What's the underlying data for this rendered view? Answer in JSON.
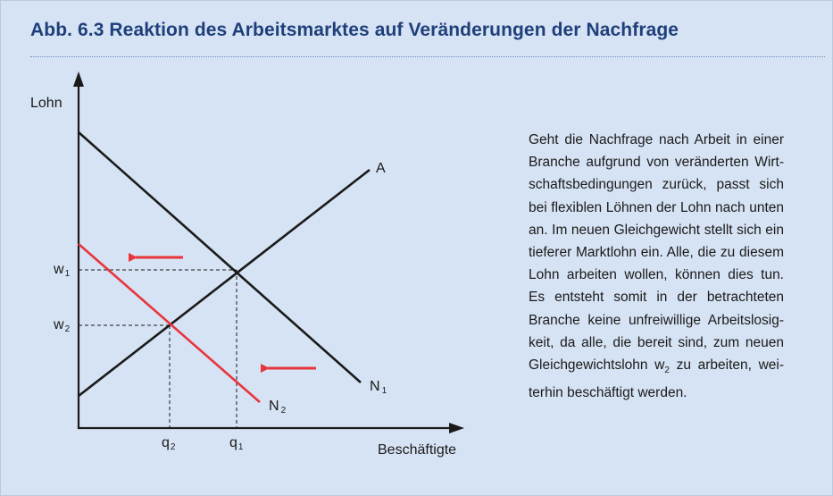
{
  "figure": {
    "title": "Abb. 6.3  Reaktion des Arbeitsmarktes auf Veränderungen der Nachfrage"
  },
  "diagram": {
    "y_axis_label": "Lohn",
    "x_axis_label": "Beschäftigte",
    "curves": {
      "supply": "A",
      "demand_old": {
        "base": "N",
        "sub": "1"
      },
      "demand_new": {
        "base": "N",
        "sub": "2"
      }
    },
    "y_ticks": [
      {
        "base": "w",
        "sub": "1"
      },
      {
        "base": "w",
        "sub": "2"
      }
    ],
    "x_ticks": [
      {
        "base": "q",
        "sub": "2"
      },
      {
        "base": "q",
        "sub": "1"
      }
    ],
    "colors": {
      "axis": "#1a1a1a",
      "curve": "#1a1a1a",
      "shifted_curve": "#e8353b",
      "arrow": "#e8353b",
      "background": "#d6e3f4",
      "title": "#1f3f7a"
    }
  },
  "description": {
    "before": "Geht die Nachfrage nach Arbeit in einer Branche aufgrund von veränderten Wirt­schaftsbedingungen zurück, passt sich bei flexiblen Löhnen der Lohn nach unten an. Im neuen Gleichgewicht stellt sich ein tieferer Marktlohn ein. Alle, die zu die­sem Lohn arbeiten wollen, können dies tun. Es entsteht somit in der betrachteten Branche keine unfreiwillige Arbeitslosig­keit, da alle, die bereit sind, zum neuen Gleichgewichtslohn w",
    "sub": "2",
    "after": " zu arbeiten, wei­terhin beschäftigt werden."
  }
}
